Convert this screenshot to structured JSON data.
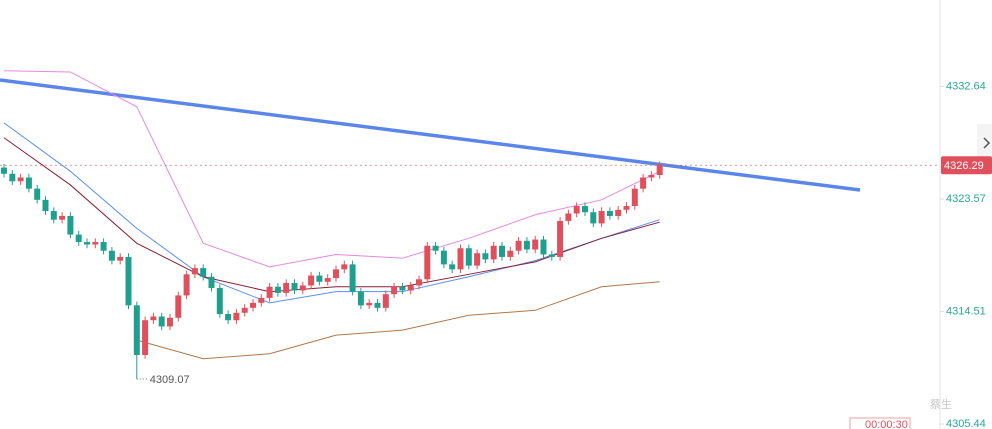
{
  "chart_data": {
    "type": "candlestick",
    "ylim": [
      4305.44,
      4339.6
    ],
    "yticks": [
      4305.44,
      4314.51,
      4323.57,
      4332.64
    ],
    "tick_color": "#26a69a",
    "up_color": "#e0505c",
    "down_color": "#1fa08e",
    "open": [
      4326.1,
      4325.6,
      4325.0,
      4325.3,
      4324.4,
      4323.5,
      4322.6,
      4321.9,
      4322.2,
      4320.7,
      4320.1,
      4319.9,
      4320.1,
      4319.4,
      4318.6,
      4318.9,
      4315.0,
      4311.0,
      4313.8,
      4314.1,
      4313.3,
      4314.0,
      4315.8,
      4317.5,
      4318.0,
      4317.3,
      4316.4,
      4314.3,
      4313.8,
      4314.4,
      4314.8,
      4315.2,
      4315.6,
      4316.5,
      4316.0,
      4316.8,
      4316.2,
      4316.6,
      4317.4,
      4316.9,
      4317.2,
      4317.9,
      4318.3,
      4316.1,
      4315.0,
      4315.2,
      4314.8,
      4315.9,
      4316.5,
      4316.2,
      4316.6,
      4317.1,
      4319.8,
      4319.4,
      4318.3,
      4317.9,
      4319.6,
      4318.2,
      4319.2,
      4318.7,
      4319.8,
      4318.9,
      4319.4,
      4320.2,
      4319.5,
      4320.3,
      4319.1,
      4318.9,
      4321.8,
      4322.4,
      4323.0,
      4322.5,
      4321.6,
      4322.6,
      4322.2,
      4322.7,
      4323.0,
      4324.4,
      4325.3,
      4325.5
    ],
    "high": [
      4326.4,
      4325.9,
      4325.6,
      4325.6,
      4324.7,
      4323.8,
      4322.9,
      4322.5,
      4322.5,
      4321.0,
      4320.4,
      4320.4,
      4320.4,
      4319.7,
      4319.2,
      4319.2,
      4315.3,
      4314.1,
      4314.4,
      4314.4,
      4314.3,
      4316.1,
      4317.8,
      4318.3,
      4318.3,
      4317.6,
      4316.7,
      4314.6,
      4314.7,
      4315.1,
      4315.5,
      4315.9,
      4316.8,
      4316.8,
      4317.1,
      4317.1,
      4316.9,
      4317.7,
      4317.7,
      4317.5,
      4318.2,
      4318.6,
      4318.6,
      4316.4,
      4315.5,
      4315.5,
      4316.2,
      4316.8,
      4316.8,
      4316.9,
      4317.4,
      4320.1,
      4320.1,
      4319.7,
      4318.6,
      4319.9,
      4319.9,
      4319.5,
      4319.5,
      4320.1,
      4320.1,
      4319.7,
      4320.5,
      4320.5,
      4320.6,
      4320.6,
      4319.4,
      4322.1,
      4322.7,
      4323.3,
      4323.3,
      4322.8,
      4322.9,
      4322.9,
      4323.0,
      4323.3,
      4324.7,
      4325.6,
      4325.8,
      4326.6
    ],
    "low": [
      4325.3,
      4324.7,
      4324.7,
      4324.1,
      4323.2,
      4322.3,
      4321.6,
      4321.6,
      4320.4,
      4319.8,
      4319.6,
      4319.6,
      4319.1,
      4318.3,
      4318.3,
      4314.7,
      4309.07,
      4310.7,
      4313.5,
      4313.0,
      4313.0,
      4313.7,
      4315.5,
      4317.2,
      4317.0,
      4316.1,
      4314.0,
      4313.5,
      4313.5,
      4314.1,
      4314.5,
      4314.9,
      4315.3,
      4315.7,
      4315.7,
      4315.9,
      4315.9,
      4316.3,
      4316.6,
      4316.6,
      4316.9,
      4317.6,
      4315.8,
      4314.7,
      4314.7,
      4314.5,
      4314.5,
      4315.6,
      4315.9,
      4315.9,
      4316.3,
      4316.8,
      4319.1,
      4318.0,
      4317.6,
      4317.6,
      4317.9,
      4317.9,
      4318.4,
      4318.4,
      4318.6,
      4318.6,
      4319.1,
      4319.2,
      4319.2,
      4318.8,
      4318.6,
      4318.6,
      4321.5,
      4322.1,
      4322.2,
      4321.3,
      4321.3,
      4321.9,
      4321.9,
      4322.4,
      4322.7,
      4324.1,
      4325.0,
      4325.2
    ],
    "close": [
      4325.6,
      4325.0,
      4325.3,
      4324.4,
      4323.5,
      4322.6,
      4321.9,
      4322.2,
      4320.7,
      4320.1,
      4319.9,
      4320.1,
      4319.4,
      4318.6,
      4318.9,
      4315.0,
      4311.0,
      4313.8,
      4314.1,
      4313.3,
      4314.0,
      4315.8,
      4317.5,
      4318.0,
      4317.3,
      4316.4,
      4314.3,
      4313.8,
      4314.4,
      4314.8,
      4315.2,
      4315.6,
      4316.5,
      4316.0,
      4316.8,
      4316.2,
      4316.6,
      4317.4,
      4316.9,
      4317.2,
      4317.9,
      4318.3,
      4316.1,
      4315.0,
      4315.2,
      4314.8,
      4315.9,
      4316.5,
      4316.2,
      4316.6,
      4317.1,
      4319.8,
      4319.4,
      4318.3,
      4317.9,
      4319.6,
      4318.2,
      4319.2,
      4318.7,
      4319.8,
      4318.9,
      4319.4,
      4320.2,
      4319.5,
      4320.3,
      4319.1,
      4318.9,
      4321.8,
      4322.4,
      4323.0,
      4322.5,
      4321.6,
      4322.6,
      4322.2,
      4322.7,
      4323.0,
      4324.4,
      4325.3,
      4325.5,
      4326.29
    ],
    "series": [
      {
        "color": "#e58ae0",
        "x": [
          0,
          8,
          16,
          24,
          32,
          40,
          48,
          56,
          64,
          72,
          79
        ],
        "values": [
          4333.9,
          4333.8,
          4331.0,
          4320.0,
          4318.1,
          4319.1,
          4318.8,
          4320.4,
          4322.3,
          4323.5,
          4325.8
        ]
      },
      {
        "color": "#b0784a",
        "x": [
          0,
          8,
          16,
          24,
          32,
          40,
          48,
          56,
          64,
          72,
          79
        ],
        "values": [
          null,
          null,
          4312.2,
          4310.7,
          4311.1,
          4312.6,
          4313.0,
          4314.2,
          4314.6,
          4316.5,
          4316.9
        ]
      },
      {
        "color": "#5b8ff0",
        "x": [
          0,
          8,
          16,
          24,
          32,
          40,
          48,
          56,
          64,
          72,
          79
        ],
        "values": [
          4329.7,
          4325.8,
          4321.2,
          4317.3,
          4315.2,
          4316.1,
          4316.1,
          4317.3,
          4318.6,
          4320.4,
          4321.9
        ]
      },
      {
        "color": "#8a1f35",
        "x": [
          0,
          8,
          16,
          24,
          32,
          40,
          48,
          56,
          64,
          72,
          79
        ],
        "values": [
          4328.5,
          4324.7,
          4320.0,
          4317.3,
          4316.1,
          4316.5,
          4316.5,
          4317.5,
          4318.5,
          4320.4,
          4321.7
        ]
      }
    ],
    "countdown": "00:00:30",
    "watermark": "蔡生"
  }
}
